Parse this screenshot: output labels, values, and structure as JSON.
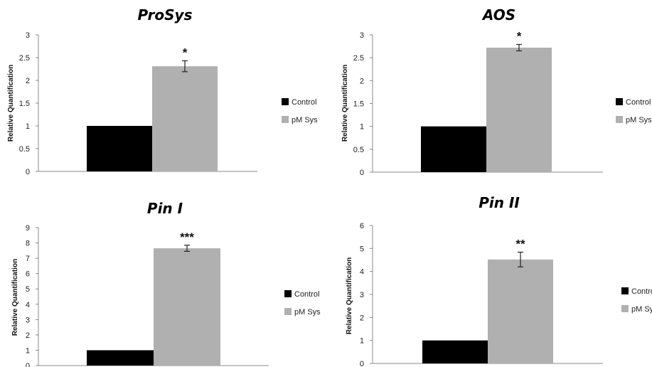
{
  "chart_data": [
    {
      "type": "bar",
      "title": "ProSys",
      "ylabel": "Relative Quantification",
      "ylim": [
        0,
        3
      ],
      "yticks": [
        "0",
        "0.5",
        "1",
        "1.5",
        "2",
        "2.5",
        "3"
      ],
      "series": [
        {
          "name": "Control",
          "value": 1.0,
          "error": 0,
          "color": "#000000"
        },
        {
          "name": "pM Sys",
          "value": 2.31,
          "error": 0.12,
          "color": "#b0b0b0"
        }
      ],
      "significance": "*",
      "legend_position": "right"
    },
    {
      "type": "bar",
      "title": "AOS",
      "ylabel": "Relative Quantification",
      "ylim": [
        0,
        3
      ],
      "yticks": [
        "0",
        "0.5",
        "1",
        "1.5",
        "2",
        "2.5",
        "3"
      ],
      "series": [
        {
          "name": "Control",
          "value": 1.0,
          "error": 0,
          "color": "#000000"
        },
        {
          "name": "pM Sys",
          "value": 2.72,
          "error": 0.07,
          "color": "#b0b0b0"
        }
      ],
      "significance": "*",
      "legend_position": "right"
    },
    {
      "type": "bar",
      "title": "Pin I",
      "ylabel": "Relative Quantification",
      "ylim": [
        0,
        9
      ],
      "yticks": [
        "0",
        "1",
        "2",
        "3",
        "4",
        "5",
        "6",
        "7",
        "8",
        "9"
      ],
      "series": [
        {
          "name": "Control",
          "value": 1.0,
          "error": 0,
          "color": "#000000"
        },
        {
          "name": "pM Sys",
          "value": 7.65,
          "error": 0.2,
          "color": "#b0b0b0"
        }
      ],
      "significance": "***",
      "legend_position": "right"
    },
    {
      "type": "bar",
      "title": "Pin II",
      "ylabel": "Relative Quantification",
      "ylim": [
        0,
        6
      ],
      "yticks": [
        "0",
        "1",
        "2",
        "3",
        "4",
        "5",
        "6"
      ],
      "series": [
        {
          "name": "Control",
          "value": 1.0,
          "error": 0,
          "color": "#000000"
        },
        {
          "name": "pM Sys",
          "value": 4.52,
          "error": 0.32,
          "color": "#b0b0b0"
        }
      ],
      "significance": "**",
      "legend_position": "right"
    }
  ]
}
